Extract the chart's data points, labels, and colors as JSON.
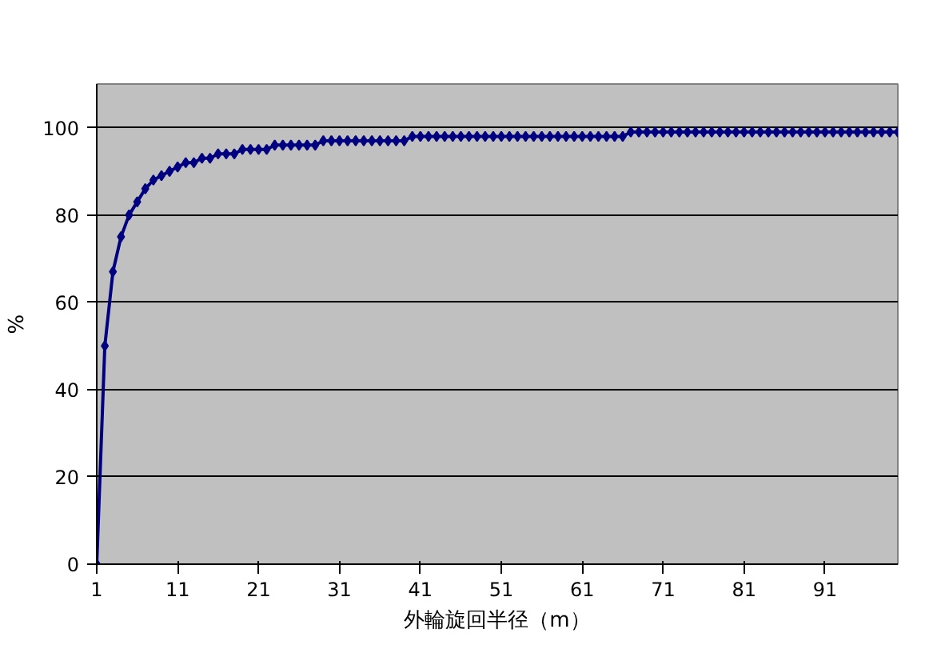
{
  "chart_data": {
    "type": "line",
    "xlabel": "外輪旋回半径（m）",
    "ylabel": "%",
    "x": [
      1,
      2,
      3,
      4,
      5,
      6,
      7,
      8,
      9,
      10,
      11,
      12,
      13,
      14,
      15,
      16,
      17,
      18,
      19,
      20,
      21,
      22,
      23,
      24,
      25,
      26,
      27,
      28,
      29,
      30,
      31,
      32,
      33,
      34,
      35,
      36,
      37,
      38,
      39,
      40,
      41,
      42,
      43,
      44,
      45,
      46,
      47,
      48,
      49,
      50,
      51,
      52,
      53,
      54,
      55,
      56,
      57,
      58,
      59,
      60,
      61,
      62,
      63,
      64,
      65,
      66,
      67,
      68,
      69,
      70,
      71,
      72,
      73,
      74,
      75,
      76,
      77,
      78,
      79,
      80,
      81,
      82,
      83,
      84,
      85,
      86,
      87,
      88,
      89,
      90,
      91,
      92,
      93,
      94,
      95,
      96,
      97,
      98,
      99,
      100
    ],
    "series": [
      {
        "color": "#000080",
        "values": [
          0,
          50,
          67,
          75,
          80,
          83,
          86,
          88,
          89,
          90,
          91,
          92,
          92,
          93,
          93,
          94,
          94,
          94,
          95,
          95,
          95,
          95,
          96,
          96,
          96,
          96,
          96,
          96,
          97,
          97,
          97,
          97,
          97,
          97,
          97,
          97,
          97,
          97,
          97,
          98,
          98,
          98,
          98,
          98,
          98,
          98,
          98,
          98,
          98,
          98,
          98,
          98,
          98,
          98,
          98,
          98,
          98,
          98,
          98,
          98,
          98,
          98,
          98,
          98,
          98,
          98,
          99,
          99,
          99,
          99,
          99,
          99,
          99,
          99,
          99,
          99,
          99,
          99,
          99,
          99,
          99,
          99,
          99,
          99,
          99,
          99,
          99,
          99,
          99,
          99,
          99,
          99,
          99,
          99,
          99,
          99,
          99,
          99,
          99,
          99
        ]
      }
    ],
    "xlim": [
      1,
      100
    ],
    "xticks": [
      1,
      11,
      21,
      31,
      41,
      51,
      61,
      71,
      81,
      91
    ],
    "ylim": [
      0,
      110
    ],
    "yticks": [
      0,
      20,
      40,
      60,
      80,
      100
    ],
    "grid": "y",
    "marker": "diamond",
    "line_style": "solid"
  }
}
